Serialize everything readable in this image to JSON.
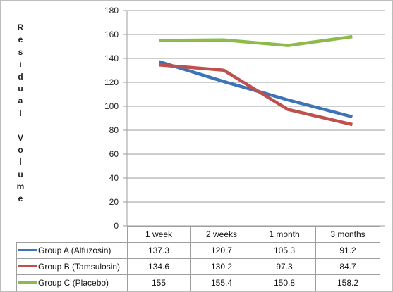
{
  "chart_data": {
    "type": "line",
    "categories": [
      "1 week",
      "2 weeks",
      "1 month",
      "3 months"
    ],
    "ylabel": "Residual Volume",
    "ylim": [
      0,
      180
    ],
    "yticks": [
      "0",
      "20",
      "40",
      "60",
      "80",
      "100",
      "120",
      "140",
      "160",
      "180"
    ],
    "grid": true,
    "legend": "data-table",
    "series": [
      {
        "name": "Group A (Alfuzosin)",
        "color": "#3d74b8",
        "values": [
          137.3,
          120.7,
          105.3,
          91.2
        ],
        "labels": [
          "137.3",
          "120.7",
          "105.3",
          "91.2"
        ]
      },
      {
        "name": "Group B (Tamsulosin)",
        "color": "#c0504d",
        "values": [
          134.6,
          130.2,
          97.3,
          84.7
        ],
        "labels": [
          "134.6",
          "130.2",
          "97.3",
          "84.7"
        ]
      },
      {
        "name": "Group C (Placebo)",
        "color": "#8dbb4a",
        "values": [
          155,
          155.4,
          150.8,
          158.2
        ],
        "labels": [
          "155",
          "155.4",
          "150.8",
          "158.2"
        ]
      }
    ]
  }
}
